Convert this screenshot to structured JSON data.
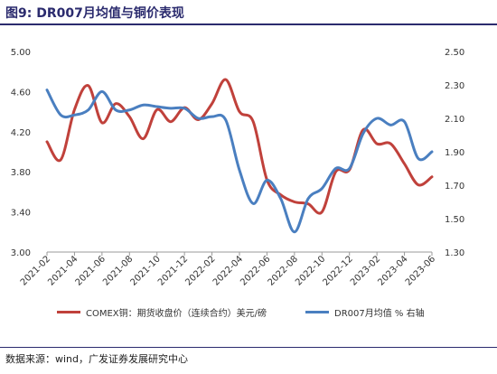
{
  "figure": {
    "title": "图9:  DR007月均值与铜价表现",
    "source": "数据来源：wind，广发证券发展研究中心"
  },
  "legend": {
    "items": [
      {
        "label": "COMEX铜：期货收盘价（连续合约）美元/磅",
        "color": "#c0413b"
      },
      {
        "label": "DR007月均值 % 右轴",
        "color": "#4a7fc0"
      }
    ]
  },
  "chart_data": {
    "type": "line",
    "grid": false,
    "legend_position": "bottom",
    "x_tick_labels": [
      "2021-02",
      "2021-04",
      "2021-06",
      "2021-08",
      "2021-10",
      "2021-12",
      "2022-02",
      "2022-04",
      "2022-06",
      "2022-08",
      "2022-10",
      "2022-12",
      "2023-02",
      "2023-04",
      "2023-06"
    ],
    "x_range": [
      "2021-02",
      "2023-06"
    ],
    "y_left": {
      "range": [
        3.0,
        5.0
      ],
      "ticks": [
        "3.00",
        "3.40",
        "3.80",
        "4.20",
        "4.60",
        "5.00"
      ]
    },
    "y_right": {
      "range": [
        1.3,
        2.5
      ],
      "ticks": [
        "1.30",
        "1.50",
        "1.70",
        "1.90",
        "2.10",
        "2.30",
        "2.50"
      ]
    },
    "series": [
      {
        "name": "COMEX铜：期货收盘价（连续合约）美元/磅",
        "axis": "left",
        "color": "#c0413b",
        "x": [
          "2021-02",
          "2021-03",
          "2021-04",
          "2021-05",
          "2021-06",
          "2021-07",
          "2021-08",
          "2021-09",
          "2021-10",
          "2021-11",
          "2021-12",
          "2022-01",
          "2022-02",
          "2022-03",
          "2022-04",
          "2022-05",
          "2022-06",
          "2022-07",
          "2022-08",
          "2022-09",
          "2022-10",
          "2022-11",
          "2022-12",
          "2023-01",
          "2023-02",
          "2023-03",
          "2023-04",
          "2023-05",
          "2023-06"
        ],
        "values": [
          4.1,
          3.92,
          4.42,
          4.66,
          4.29,
          4.48,
          4.35,
          4.13,
          4.42,
          4.3,
          4.44,
          4.32,
          4.48,
          4.72,
          4.4,
          4.3,
          3.72,
          3.57,
          3.5,
          3.48,
          3.4,
          3.8,
          3.82,
          4.22,
          4.08,
          4.08,
          3.88,
          3.67,
          3.75
        ]
      },
      {
        "name": "DR007月均值 % 右轴",
        "axis": "right",
        "color": "#4a7fc0",
        "x": [
          "2021-02",
          "2021-03",
          "2021-04",
          "2021-05",
          "2021-06",
          "2021-07",
          "2021-08",
          "2021-09",
          "2021-10",
          "2021-11",
          "2021-12",
          "2022-01",
          "2022-02",
          "2022-03",
          "2022-04",
          "2022-05",
          "2022-06",
          "2022-07",
          "2022-08",
          "2022-09",
          "2022-10",
          "2022-11",
          "2022-12",
          "2023-01",
          "2023-02",
          "2023-03",
          "2023-04",
          "2023-05",
          "2023-06"
        ],
        "values": [
          2.27,
          2.12,
          2.12,
          2.15,
          2.26,
          2.15,
          2.15,
          2.18,
          2.17,
          2.16,
          2.16,
          2.1,
          2.11,
          2.09,
          1.79,
          1.59,
          1.73,
          1.62,
          1.42,
          1.62,
          1.68,
          1.8,
          1.8,
          2.01,
          2.1,
          2.06,
          2.08,
          1.86,
          1.9
        ]
      }
    ]
  }
}
